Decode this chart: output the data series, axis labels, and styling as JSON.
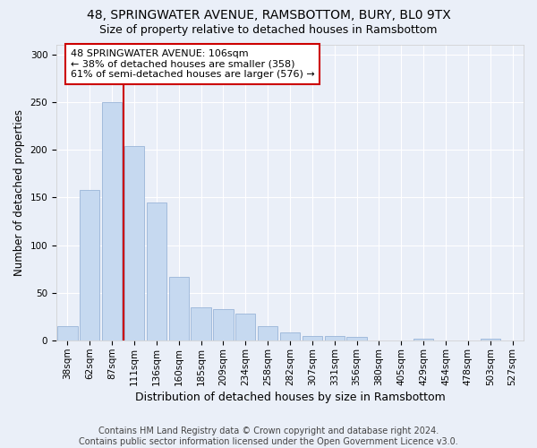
{
  "title": "48, SPRINGWATER AVENUE, RAMSBOTTOM, BURY, BL0 9TX",
  "subtitle": "Size of property relative to detached houses in Ramsbottom",
  "xlabel": "Distribution of detached houses by size in Ramsbottom",
  "ylabel": "Number of detached properties",
  "categories": [
    "38sqm",
    "62sqm",
    "87sqm",
    "111sqm",
    "136sqm",
    "160sqm",
    "185sqm",
    "209sqm",
    "234sqm",
    "258sqm",
    "282sqm",
    "307sqm",
    "331sqm",
    "356sqm",
    "380sqm",
    "405sqm",
    "429sqm",
    "454sqm",
    "478sqm",
    "503sqm",
    "527sqm"
  ],
  "values": [
    15,
    158,
    250,
    204,
    145,
    67,
    35,
    33,
    28,
    15,
    9,
    5,
    5,
    4,
    0,
    0,
    2,
    0,
    0,
    2,
    0
  ],
  "bar_color": "#c6d9f0",
  "bar_edgecolor": "#9ab5d8",
  "redline_index": 2,
  "redline_color": "#cc0000",
  "annotation_text": "48 SPRINGWATER AVENUE: 106sqm\n← 38% of detached houses are smaller (358)\n61% of semi-detached houses are larger (576) →",
  "annotation_box_edgecolor": "#cc0000",
  "annotation_box_facecolor": "#ffffff",
  "ylim": [
    0,
    310
  ],
  "yticks": [
    0,
    50,
    100,
    150,
    200,
    250,
    300
  ],
  "background_color": "#eaeff8",
  "grid_color": "#ffffff",
  "title_fontsize": 10,
  "subtitle_fontsize": 9,
  "xlabel_fontsize": 9,
  "ylabel_fontsize": 8.5,
  "tick_fontsize": 7.5,
  "annotation_fontsize": 8,
  "footer_text": "Contains HM Land Registry data © Crown copyright and database right 2024.\nContains public sector information licensed under the Open Government Licence v3.0.",
  "footer_fontsize": 7
}
